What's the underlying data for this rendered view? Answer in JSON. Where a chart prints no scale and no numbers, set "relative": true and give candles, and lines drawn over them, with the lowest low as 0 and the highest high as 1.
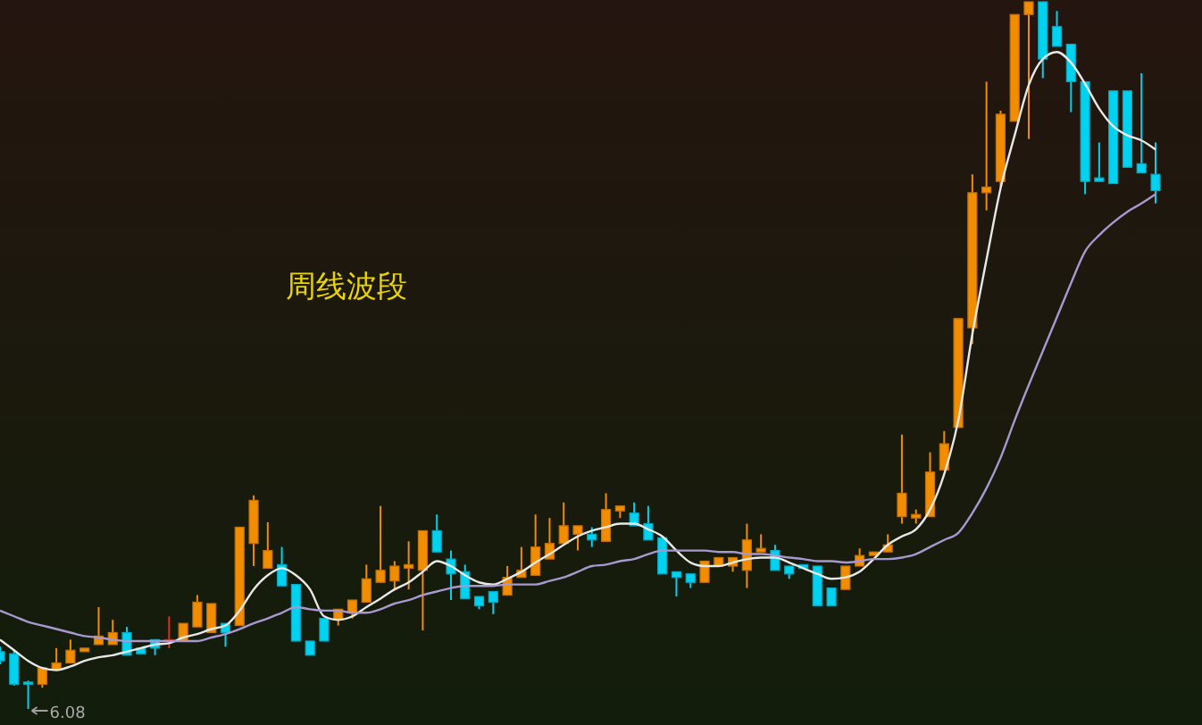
{
  "chart_data": {
    "type": "candlestick",
    "relative": true,
    "categories": [
      null,
      null,
      null,
      null,
      null,
      null,
      null,
      null,
      null,
      null,
      null,
      null,
      null,
      null,
      null,
      null,
      null,
      null,
      null,
      null,
      null,
      null,
      null,
      null,
      null,
      null,
      null,
      null,
      null,
      null,
      null,
      null,
      null,
      null,
      null,
      null,
      null,
      null,
      null,
      null,
      null,
      null,
      null,
      null,
      null,
      null,
      null,
      null,
      null,
      null,
      null,
      null,
      null,
      null,
      null,
      null,
      null,
      null,
      null,
      null,
      null,
      null,
      null,
      null,
      null,
      null,
      null,
      null,
      null,
      null,
      null,
      null,
      null,
      null,
      null,
      null,
      null,
      null,
      null,
      null,
      null,
      null,
      null
    ],
    "ohlc": [
      [
        0.081,
        0.088,
        0.063,
        0.068
      ],
      [
        0.078,
        0.083,
        0.033,
        0.035
      ],
      [
        0.038,
        0.04,
        0,
        0.035
      ],
      [
        0.035,
        0.058,
        0.03,
        0.058
      ],
      [
        0.055,
        0.086,
        0.055,
        0.065
      ],
      [
        0.065,
        0.098,
        0.065,
        0.083
      ],
      [
        0.081,
        0.086,
        0.081,
        0.086
      ],
      [
        0.091,
        0.144,
        0.091,
        0.103
      ],
      [
        0.091,
        0.126,
        0.091,
        0.108
      ],
      [
        0.108,
        0.116,
        0.076,
        0.076
      ],
      [
        0.086,
        0.086,
        0.078,
        0.078
      ],
      [
        0.098,
        0.098,
        0.076,
        0.086
      ],
      [
        0.096,
        0.131,
        0.086,
        0.098
      ],
      [
        0.096,
        0.121,
        0.096,
        0.121
      ],
      [
        0.116,
        0.161,
        0.116,
        0.151
      ],
      [
        0.108,
        0.149,
        0.108,
        0.149
      ],
      [
        0.121,
        0.121,
        0.088,
        0.108
      ],
      [
        0.118,
        0.257,
        0.118,
        0.257
      ],
      [
        0.234,
        0.302,
        0.202,
        0.295
      ],
      [
        0.199,
        0.264,
        0.199,
        0.224
      ],
      [
        0.204,
        0.229,
        0.174,
        0.174
      ],
      [
        0.176,
        0.176,
        0.096,
        0.096
      ],
      [
        0.096,
        0.096,
        0.076,
        0.076
      ],
      [
        0.128,
        0.128,
        0.096,
        0.096
      ],
      [
        0.126,
        0.141,
        0.118,
        0.141
      ],
      [
        0.136,
        0.154,
        0.128,
        0.154
      ],
      [
        0.151,
        0.204,
        0.151,
        0.184
      ],
      [
        0.179,
        0.287,
        0.179,
        0.196
      ],
      [
        0.181,
        0.209,
        0.169,
        0.202
      ],
      [
        0.199,
        0.237,
        0.169,
        0.204
      ],
      [
        0.196,
        0.252,
        0.111,
        0.252
      ],
      [
        0.252,
        0.275,
        0.222,
        0.222
      ],
      [
        0.212,
        0.224,
        0.154,
        0.191
      ],
      [
        0.194,
        0.204,
        0.156,
        0.156
      ],
      [
        0.159,
        0.159,
        0.141,
        0.146
      ],
      [
        0.166,
        0.166,
        0.134,
        0.151
      ],
      [
        0.161,
        0.202,
        0.161,
        0.186
      ],
      [
        0.186,
        0.229,
        0.186,
        0.196
      ],
      [
        0.189,
        0.275,
        0.189,
        0.229
      ],
      [
        0.212,
        0.27,
        0.212,
        0.234
      ],
      [
        0.234,
        0.292,
        0.234,
        0.259
      ],
      [
        0.247,
        0.259,
        0.224,
        0.259
      ],
      [
        0.247,
        0.257,
        0.229,
        0.239
      ],
      [
        0.237,
        0.305,
        0.237,
        0.282
      ],
      [
        0.28,
        0.287,
        0.27,
        0.287
      ],
      [
        0.277,
        0.292,
        0.259,
        0.259
      ],
      [
        0.262,
        0.287,
        0.239,
        0.239
      ],
      [
        0.242,
        0.242,
        0.191,
        0.191
      ],
      [
        0.194,
        0.194,
        0.159,
        0.186
      ],
      [
        0.191,
        0.191,
        0.171,
        0.179
      ],
      [
        0.179,
        0.209,
        0.179,
        0.209
      ],
      [
        0.202,
        0.214,
        0.202,
        0.214
      ],
      [
        0.202,
        0.214,
        0.194,
        0.214
      ],
      [
        0.196,
        0.262,
        0.171,
        0.239
      ],
      [
        0.222,
        0.247,
        0.222,
        0.227
      ],
      [
        0.224,
        0.232,
        0.196,
        0.196
      ],
      [
        0.202,
        0.202,
        0.184,
        0.191
      ],
      [
        0.204,
        0.204,
        0.199,
        0.199
      ],
      [
        0.202,
        0.202,
        0.146,
        0.146
      ],
      [
        0.171,
        0.171,
        0.146,
        0.146
      ],
      [
        0.169,
        0.202,
        0.169,
        0.202
      ],
      [
        0.202,
        0.227,
        0.202,
        0.217
      ],
      [
        0.217,
        0.222,
        0.217,
        0.222
      ],
      [
        0.222,
        0.247,
        0.222,
        0.232
      ],
      [
        0.272,
        0.388,
        0.262,
        0.305
      ],
      [
        0.27,
        0.282,
        0.262,
        0.275
      ],
      [
        0.272,
        0.363,
        0.272,
        0.335
      ],
      [
        0.338,
        0.393,
        0.338,
        0.375
      ],
      [
        0.398,
        0.552,
        0.398,
        0.552
      ],
      [
        0.539,
        0.756,
        0.516,
        0.73
      ],
      [
        0.73,
        0.887,
        0.705,
        0.738
      ],
      [
        0.746,
        0.846,
        0.738,
        0.841
      ],
      [
        0.831,
        0.982,
        0.831,
        0.982
      ],
      [
        0.982,
        1,
        0.806,
        1
      ],
      [
        1,
        1,
        0.892,
        0.919
      ],
      [
        0.965,
        0.987,
        0.937,
        0.937
      ],
      [
        0.94,
        0.94,
        0.844,
        0.887
      ],
      [
        0.887,
        0.887,
        0.728,
        0.746
      ],
      [
        0.751,
        0.801,
        0.746,
        0.746
      ],
      [
        0.874,
        0.874,
        0.743,
        0.743
      ],
      [
        0.874,
        0.874,
        0.766,
        0.766
      ],
      [
        0.771,
        0.899,
        0.758,
        0.758
      ],
      [
        0.756,
        0.801,
        0.715,
        0.733
      ]
    ],
    "colors": [
      "#00d2f0",
      "#00d2f0",
      "#00d2f0",
      "#f28c00",
      "#f28c00",
      "#f28c00",
      "#f28c00",
      "#f28c00",
      "#f28c00",
      "#00d2f0",
      "#00d2f0",
      "#00d2f0",
      "#e03020",
      "#f28c00",
      "#f28c00",
      "#f28c00",
      "#00d2f0",
      "#f28c00",
      "#f28c00",
      "#f28c00",
      "#00d2f0",
      "#00d2f0",
      "#00d2f0",
      "#00d2f0",
      "#f28c00",
      "#f28c00",
      "#f28c00",
      "#f28c00",
      "#f28c00",
      "#f28c00",
      "#f28c00",
      "#00d2f0",
      "#00d2f0",
      "#00d2f0",
      "#00d2f0",
      "#00d2f0",
      "#f28c00",
      "#f28c00",
      "#f28c00",
      "#f28c00",
      "#f28c00",
      "#f28c00",
      "#00d2f0",
      "#f28c00",
      "#f28c00",
      "#00d2f0",
      "#00d2f0",
      "#00d2f0",
      "#00d2f0",
      "#00d2f0",
      "#f28c00",
      "#f28c00",
      "#f28c00",
      "#f28c00",
      "#f28c00",
      "#00d2f0",
      "#00d2f0",
      "#00d2f0",
      "#00d2f0",
      "#00d2f0",
      "#f28c00",
      "#f28c00",
      "#f28c00",
      "#f28c00",
      "#f28c00",
      "#f28c00",
      "#f28c00",
      "#f28c00",
      "#f28c00",
      "#f28c00",
      "#f28c00",
      "#f28c00",
      "#f28c00",
      "#f28c00",
      "#00d2f0",
      "#00d2f0",
      "#00d2f0",
      "#00d2f0",
      "#00d2f0",
      "#00d2f0",
      "#00d2f0",
      "#00d2f0",
      "#00d2f0"
    ],
    "series": [
      {
        "type": "line",
        "color": "#e8e8e8",
        "values": [
          0.098,
          0.083,
          0.068,
          0.058,
          0.055,
          0.06,
          0.068,
          0.073,
          0.076,
          0.081,
          0.086,
          0.091,
          0.093,
          0.101,
          0.106,
          0.113,
          0.118,
          0.139,
          0.169,
          0.189,
          0.199,
          0.189,
          0.169,
          0.131,
          0.126,
          0.131,
          0.144,
          0.156,
          0.169,
          0.179,
          0.194,
          0.209,
          0.202,
          0.189,
          0.179,
          0.176,
          0.184,
          0.194,
          0.207,
          0.219,
          0.232,
          0.244,
          0.252,
          0.257,
          0.262,
          0.262,
          0.254,
          0.244,
          0.224,
          0.207,
          0.202,
          0.202,
          0.207,
          0.212,
          0.214,
          0.214,
          0.207,
          0.199,
          0.191,
          0.184,
          0.186,
          0.194,
          0.212,
          0.232,
          0.244,
          0.254,
          0.282,
          0.332,
          0.408,
          0.53,
          0.635,
          0.736,
          0.811,
          0.882,
          0.919,
          0.929,
          0.914,
          0.884,
          0.849,
          0.824,
          0.811,
          0.804,
          0.791
        ]
      },
      {
        "type": "line",
        "color": "#a898d0",
        "values": [
          0.139,
          0.131,
          0.123,
          0.118,
          0.113,
          0.108,
          0.103,
          0.101,
          0.098,
          0.096,
          0.096,
          0.096,
          0.096,
          0.096,
          0.096,
          0.101,
          0.106,
          0.113,
          0.121,
          0.128,
          0.136,
          0.144,
          0.141,
          0.139,
          0.139,
          0.136,
          0.136,
          0.141,
          0.149,
          0.154,
          0.161,
          0.166,
          0.171,
          0.174,
          0.174,
          0.174,
          0.176,
          0.176,
          0.176,
          0.181,
          0.186,
          0.194,
          0.202,
          0.204,
          0.209,
          0.212,
          0.219,
          0.224,
          0.224,
          0.224,
          0.224,
          0.222,
          0.222,
          0.219,
          0.219,
          0.217,
          0.214,
          0.212,
          0.209,
          0.209,
          0.207,
          0.209,
          0.212,
          0.212,
          0.214,
          0.219,
          0.229,
          0.239,
          0.249,
          0.277,
          0.312,
          0.355,
          0.408,
          0.458,
          0.506,
          0.554,
          0.602,
          0.647,
          0.67,
          0.688,
          0.703,
          0.715,
          0.728
        ]
      }
    ],
    "annotations": [
      "周线波段",
      "6.08"
    ]
  }
}
